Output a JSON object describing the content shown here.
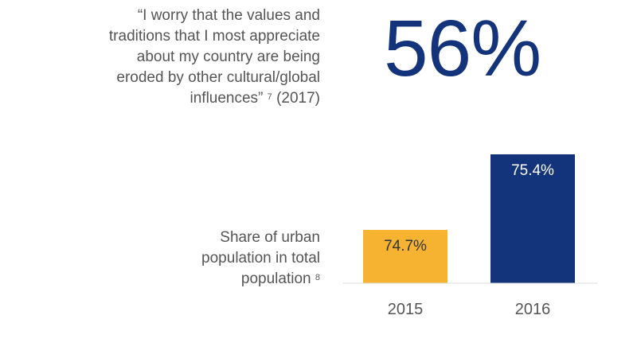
{
  "quote": {
    "lines": [
      "“I worry that the values and",
      "traditions that I most appreciate",
      "about my country are being",
      "eroded by other cultural/global"
    ],
    "last_line_pre": "influences”",
    "footnote": "7",
    "last_line_post": " (2017)"
  },
  "big_stat": "56%",
  "chart_label": {
    "lines": [
      "Share of urban",
      "population in total"
    ],
    "last_line": "population",
    "footnote": "8"
  },
  "colors": {
    "gold": "#f5b331",
    "navy": "#13337a",
    "text": "#555555",
    "axis": "#dddddd"
  },
  "chart_data": {
    "type": "bar",
    "categories": [
      "2015",
      "2016"
    ],
    "values": [
      74.7,
      75.4
    ],
    "labels": [
      "74.7%",
      "75.4%"
    ],
    "bar_colors": [
      "#f5b331",
      "#13337a"
    ],
    "label_colors": [
      "#333333",
      "#ffffff"
    ],
    "title": "",
    "xlabel": "",
    "ylabel": ""
  }
}
